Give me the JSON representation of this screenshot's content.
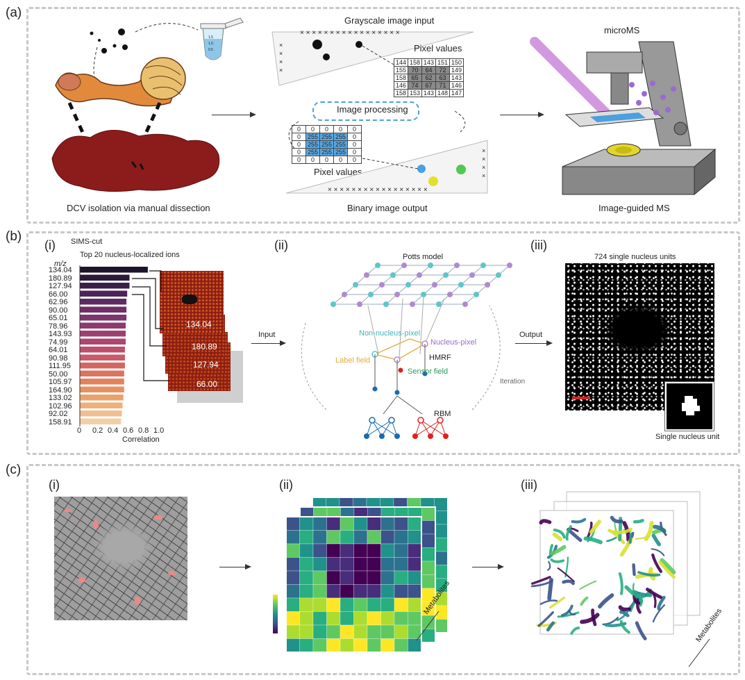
{
  "panel_a": {
    "label": "(a)",
    "tube_labels": [
      "1.5",
      "1.0",
      "0.5"
    ],
    "caption_left": "DCV isolation via manual dissection",
    "grayscale_title": "Grayscale image input",
    "pixel_values_top_label": "Pixel values",
    "gray_table": [
      [
        "144",
        "158",
        "143",
        "151",
        "150"
      ],
      [
        "155",
        "70",
        "64",
        "72",
        "149"
      ],
      [
        "158",
        "65",
        "62",
        "63",
        "143"
      ],
      [
        "146",
        "74",
        "67",
        "71",
        "146"
      ],
      [
        "158",
        "153",
        "143",
        "148",
        "147"
      ]
    ],
    "image_processing_label": "Image processing",
    "binary_table": [
      [
        "0",
        "0",
        "0",
        "0",
        "0"
      ],
      [
        "0",
        "255",
        "255",
        "255",
        "0"
      ],
      [
        "0",
        "255",
        "255",
        "255",
        "0"
      ],
      [
        "0",
        "255",
        "255",
        "255",
        "0"
      ],
      [
        "0",
        "0",
        "0",
        "0",
        "0"
      ]
    ],
    "pixel_values_bottom_label": "Pixel values",
    "binary_title": "Binary image output",
    "microscope_title": "microMS",
    "caption_right": "Image-guided MS"
  },
  "panel_b": {
    "label": "(b)",
    "i_label": "(i)",
    "method": "SIMS-cut",
    "subtitle": "Top 20 nucleus-localized ions",
    "mz_label": "m/z",
    "ions": [
      "134.04",
      "180.89",
      "127.94",
      "66.00",
      "62.96",
      "90.00",
      "65.01",
      "78.96",
      "143.93",
      "74.99",
      "64.01",
      "90.98",
      "111.95",
      "50.00",
      "105.97",
      "164.90",
      "133.02",
      "102.96",
      "92.02",
      "158.91"
    ],
    "correlations": [
      0.89,
      0.65,
      0.65,
      0.62,
      0.61,
      0.61,
      0.61,
      0.6,
      0.6,
      0.6,
      0.59,
      0.59,
      0.59,
      0.58,
      0.58,
      0.58,
      0.57,
      0.56,
      0.55,
      0.54
    ],
    "bar_colors": [
      "#1c1428",
      "#2a1a3a",
      "#3a1f4a",
      "#4c2558",
      "#5e2a62",
      "#6e2f68",
      "#7e346c",
      "#8e3a6e",
      "#9e406f",
      "#ae466e",
      "#bd4f6b",
      "#c95a66",
      "#d46662",
      "#dc735e",
      "#e3825e",
      "#e79162",
      "#eba16d",
      "#eeb07d",
      "#f0bf91",
      "#f2cfa8"
    ],
    "x_ticks": [
      "0",
      "0.2",
      "0.4",
      "0.6",
      "0.8",
      "1.0"
    ],
    "x_title": "Correlation",
    "stack_labels": [
      "134.04",
      "180.89",
      "127.94",
      "66.00"
    ],
    "input_label": "Input",
    "ii_label": "(ii)",
    "potts_label": "Potts model",
    "non_nucleus_label": "Non-nucleus-pixel",
    "nucleus_label": "Nucleus-pixel",
    "label_field": "Label field",
    "hmrf_label": "HMRF",
    "sensor_field": "Sensor field",
    "iteration_label": "Iteration",
    "rbm_label": "RBM",
    "output_label": "Output",
    "iii_label": "(iii)",
    "units_title": "724 single nucleus units",
    "single_unit_label": "Single nucleus unit"
  },
  "panel_c": {
    "label": "(c)",
    "i_label": "(i)",
    "ii_label": "(ii)",
    "iii_label": "(iii)",
    "metabolites_label_1": "Metabolites",
    "metabolites_label_2": "Metabolites"
  },
  "colors": {
    "dash_border": "#c8c8c8",
    "tissue_red": "#8c1c1c",
    "cyan_node": "#5cc6c8",
    "purple_node": "#b089d0",
    "label_field": "#e8a83a",
    "sensor_field": "#2a9a5a",
    "highlight_blue": "#4aa0e0"
  }
}
